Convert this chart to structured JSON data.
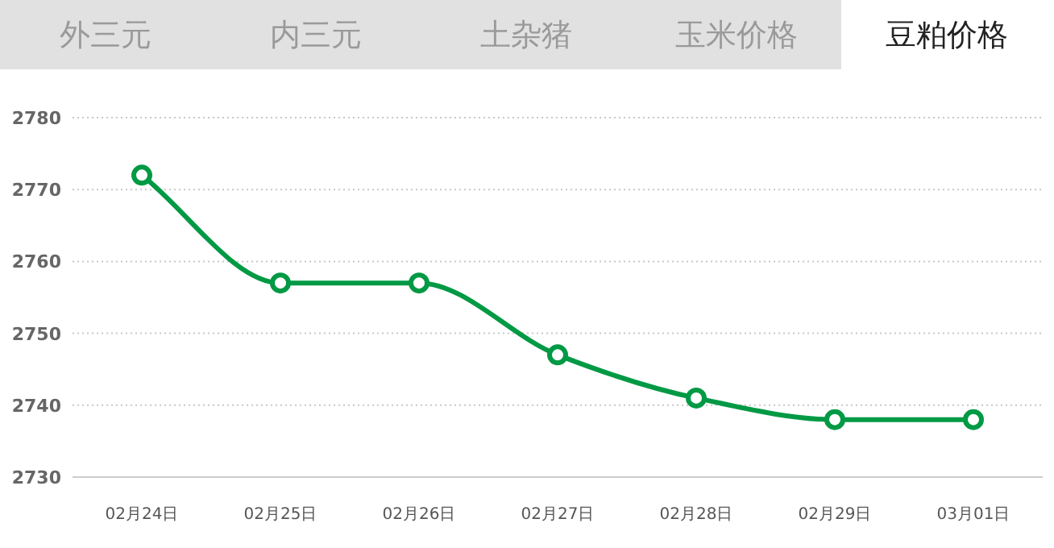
{
  "chart_data": {
    "type": "line",
    "title": "豆粕价格",
    "annotations": [
      "外三元",
      "内三元",
      "土杂猪",
      "玉米价格"
    ],
    "categories": [
      "02月24日",
      "02月25日",
      "02月26日",
      "02月27日",
      "02月28日",
      "02月29日",
      "03月01日"
    ],
    "series": [
      {
        "color": "#009944",
        "values": [
          2772,
          2757,
          2757,
          2747,
          2741,
          2738,
          2738
        ]
      }
    ],
    "ylim": [
      2730,
      2780
    ],
    "yticks": [
      2730,
      2740,
      2750,
      2760,
      2770,
      2780
    ],
    "grid": "y",
    "marker": "circle",
    "line_style": "solid"
  }
}
